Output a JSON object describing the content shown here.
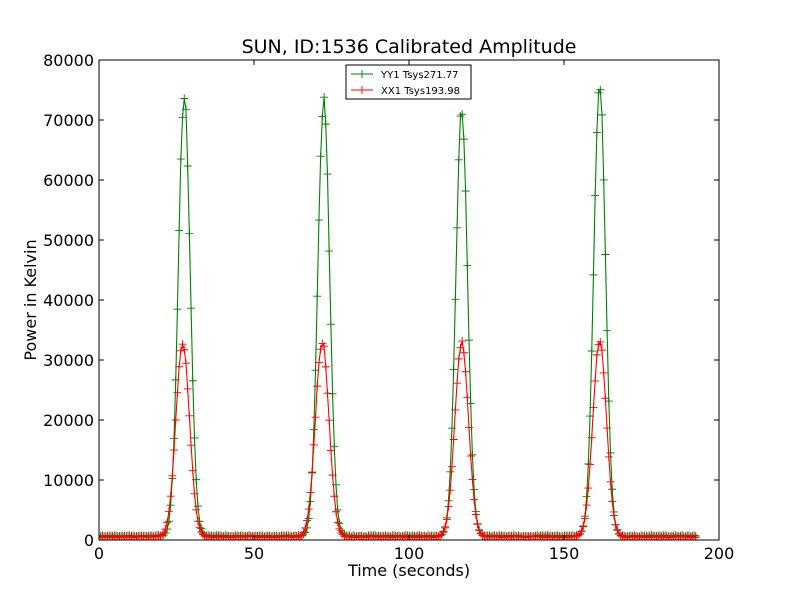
{
  "chart_data": {
    "type": "line",
    "title": "SUN, ID:1536 Calibrated Amplitude",
    "xlabel": "Time (seconds)",
    "ylabel": "Power in Kelvin",
    "xlim": [
      0,
      200
    ],
    "ylim": [
      0,
      80000
    ],
    "xticks": [
      0,
      50,
      100,
      150,
      200
    ],
    "yticks": [
      0,
      10000,
      20000,
      30000,
      40000,
      50000,
      60000,
      70000,
      80000
    ],
    "grid": false,
    "legend_position": "top-center",
    "marker": "+",
    "series": [
      {
        "name": "YY1 Tsys271.77",
        "color": "#008000",
        "baseline": 700,
        "peaks": [
          {
            "center": 27.5,
            "peak": 73500,
            "sigma": 1.9
          },
          {
            "center": 72.5,
            "peak": 73000,
            "sigma": 1.9
          },
          {
            "center": 117.0,
            "peak": 70500,
            "sigma": 1.9
          },
          {
            "center": 161.5,
            "peak": 75500,
            "sigma": 1.9
          }
        ],
        "x_range": [
          0,
          193
        ],
        "step": 0.55
      },
      {
        "name": "XX1 Tsys193.98",
        "color": "#ff0000",
        "baseline": 500,
        "peaks": [
          {
            "center": 27.0,
            "peak": 32500,
            "sigma": 2.2
          },
          {
            "center": 72.0,
            "peak": 32500,
            "sigma": 2.2
          },
          {
            "center": 117.0,
            "peak": 32500,
            "sigma": 2.2
          },
          {
            "center": 161.5,
            "peak": 32500,
            "sigma": 2.2
          }
        ],
        "x_range": [
          0,
          193
        ],
        "step": 0.55
      }
    ]
  }
}
